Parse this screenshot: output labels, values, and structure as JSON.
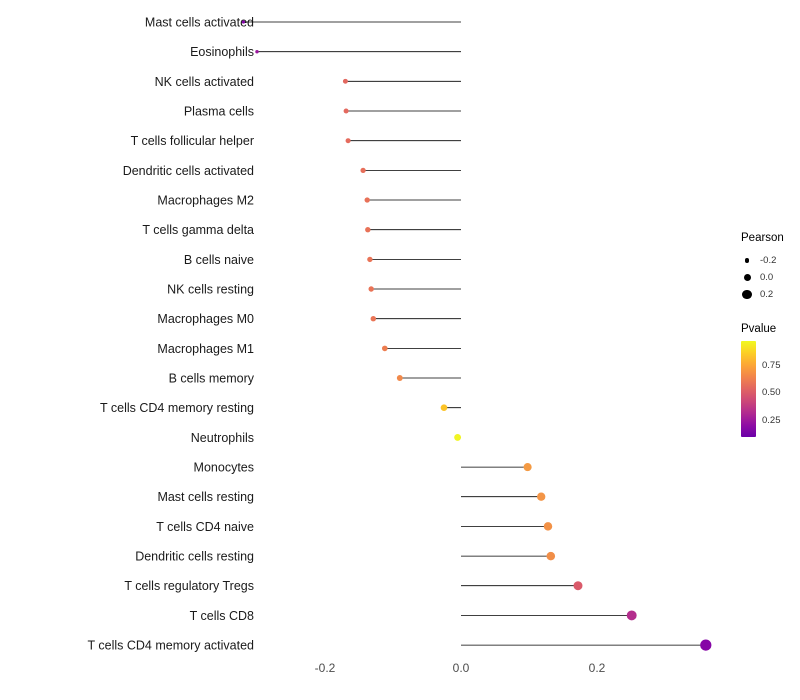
{
  "chart_data": {
    "type": "lollipop",
    "title": "",
    "xlabel": "",
    "ylabel": "",
    "grid": false,
    "legend_position": "right",
    "size_maps_to": "Pearson",
    "color_maps_to": "Pvalue",
    "x_ticks": [
      -0.2,
      0,
      0.2
    ],
    "x_tick_labels": [
      "-0.2",
      "0.0",
      "0.2"
    ],
    "xlim": [
      -0.35,
      0.4
    ],
    "points": [
      {
        "label": "Mast cells activated",
        "pearson": -0.32,
        "pvalue": 0.12,
        "color": "#8405a7"
      },
      {
        "label": "Eosinophils",
        "pearson": -0.3,
        "pvalue": 0.18,
        "color": "#9c179e"
      },
      {
        "label": "NK cells activated",
        "pearson": -0.17,
        "pvalue": 0.6,
        "color": "#e3685f"
      },
      {
        "label": "Plasma cells",
        "pearson": -0.169,
        "pvalue": 0.6,
        "color": "#e4695e"
      },
      {
        "label": "T cells follicular helper",
        "pearson": -0.166,
        "pvalue": 0.61,
        "color": "#e56b5d"
      },
      {
        "label": "Dendritic cells activated",
        "pearson": -0.144,
        "pvalue": 0.62,
        "color": "#e76f5a"
      },
      {
        "label": "Macrophages M2",
        "pearson": -0.138,
        "pvalue": 0.63,
        "color": "#e87158"
      },
      {
        "label": "T cells gamma delta",
        "pearson": -0.137,
        "pvalue": 0.63,
        "color": "#e87258"
      },
      {
        "label": "B cells naive",
        "pearson": -0.134,
        "pvalue": 0.64,
        "color": "#e97457"
      },
      {
        "label": "NK cells resting",
        "pearson": -0.132,
        "pvalue": 0.64,
        "color": "#e97356"
      },
      {
        "label": "Macrophages M0",
        "pearson": -0.129,
        "pvalue": 0.64,
        "color": "#ea7556"
      },
      {
        "label": "Macrophages M1",
        "pearson": -0.112,
        "pvalue": 0.66,
        "color": "#ed7d50"
      },
      {
        "label": "B cells memory",
        "pearson": -0.09,
        "pvalue": 0.7,
        "color": "#f1894b"
      },
      {
        "label": "T cells CD4 memory resting",
        "pearson": -0.025,
        "pvalue": 0.9,
        "color": "#fcc327"
      },
      {
        "label": "Neutrophils",
        "pearson": -0.005,
        "pvalue": 0.97,
        "color": "#f1f524"
      },
      {
        "label": "Monocytes",
        "pearson": 0.098,
        "pvalue": 0.74,
        "color": "#f49a43"
      },
      {
        "label": "Mast cells resting",
        "pearson": 0.118,
        "pvalue": 0.73,
        "color": "#f39547"
      },
      {
        "label": "T cells CD4 naive",
        "pearson": 0.128,
        "pvalue": 0.72,
        "color": "#f29146"
      },
      {
        "label": "Dendritic cells resting",
        "pearson": 0.132,
        "pvalue": 0.71,
        "color": "#f18e48"
      },
      {
        "label": "T cells regulatory Tregs",
        "pearson": 0.172,
        "pvalue": 0.53,
        "color": "#da5a6a"
      },
      {
        "label": "T cells CD8",
        "pearson": 0.251,
        "pvalue": 0.34,
        "color": "#b42e8d"
      },
      {
        "label": "T cells CD4 memory activated",
        "pearson": 0.36,
        "pvalue": 0.12,
        "color": "#8606a6"
      }
    ],
    "legend": {
      "size": {
        "title": "Pearson",
        "entries": [
          {
            "label": "-0.2",
            "value": -0.2
          },
          {
            "label": "0.0",
            "value": 0.0
          },
          {
            "label": "0.2",
            "value": 0.2
          }
        ]
      },
      "color": {
        "title": "Pvalue",
        "tick_labels": [
          "0.75",
          "0.50",
          "0.25"
        ],
        "tick_values": [
          0.75,
          0.5,
          0.25
        ],
        "domain": [
          0.98,
          0.1
        ],
        "gradient": [
          "#f0f921",
          "#fcce25",
          "#fca636",
          "#f2844b",
          "#e16462",
          "#cc4778",
          "#b12a90",
          "#8f0da4",
          "#6a00a8"
        ]
      }
    }
  }
}
